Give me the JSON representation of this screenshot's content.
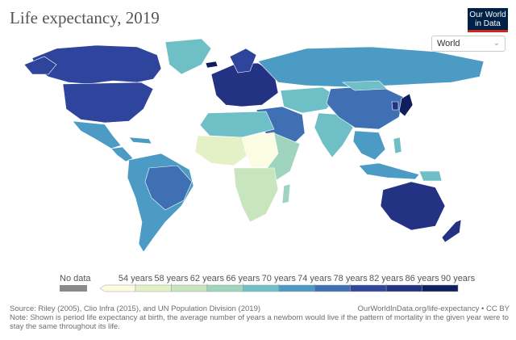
{
  "header": {
    "title": "Life expectancy, 2019",
    "logo_line1": "Our World",
    "logo_line2": "in Data"
  },
  "region_select": {
    "value": "World"
  },
  "legend": {
    "no_data_label": "No data",
    "tick_labels": [
      "54 years",
      "58 years",
      "62 years",
      "66 years",
      "70 years",
      "74 years",
      "78 years",
      "82 years",
      "86 years",
      "90 years"
    ],
    "bins": [
      {
        "color": "#fcfce3"
      },
      {
        "color": "#e4f0c5"
      },
      {
        "color": "#c8e5bd"
      },
      {
        "color": "#9fd4be"
      },
      {
        "color": "#6fbfc6"
      },
      {
        "color": "#4c9bc4"
      },
      {
        "color": "#3f70b3"
      },
      {
        "color": "#2f449c"
      },
      {
        "color": "#243284"
      },
      {
        "color": "#0f1f5e"
      }
    ],
    "no_data_color": "#8a8a8a"
  },
  "footer": {
    "source": "Source: Riley (2005), Clio Infra (2015), and UN Population Division (2019)",
    "credit": "OurWorldInData.org/life-expectancy • CC BY",
    "note": "Note: Shown is period life expectancy at birth, the average number of years a newborn would live if the pattern of mortality in the given year were to stay the same throughout its life."
  }
}
